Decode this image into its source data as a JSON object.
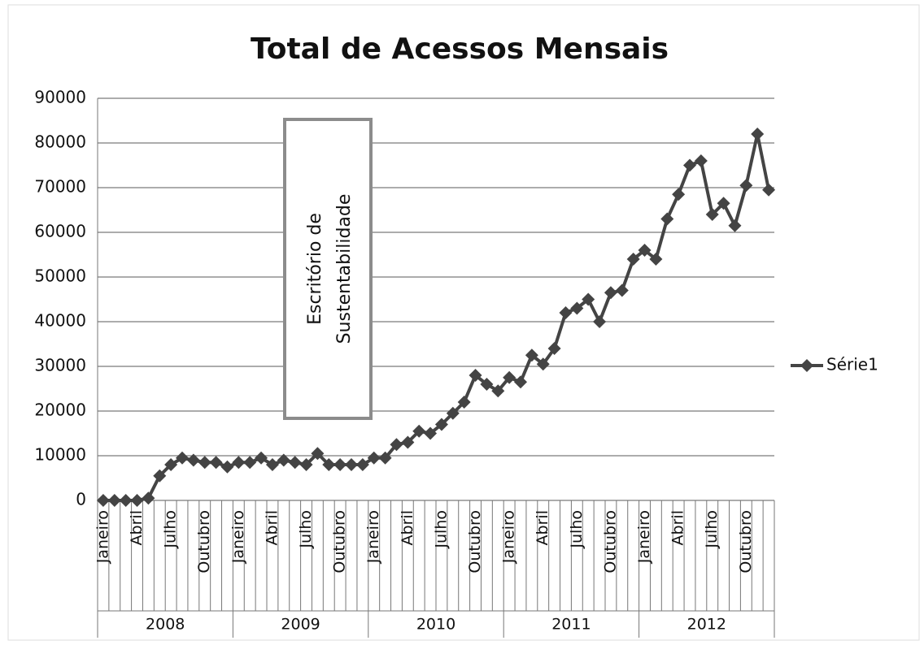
{
  "chart_data": {
    "type": "line",
    "title": "Total de Acessos Mensais",
    "categories": [
      "Janeiro",
      null,
      null,
      "Abril",
      null,
      null,
      "Julho",
      null,
      null,
      "Outubro",
      null,
      null,
      "Janeiro",
      null,
      null,
      "Abril",
      null,
      null,
      "Julho",
      null,
      null,
      "Outubro",
      null,
      null,
      "Janeiro",
      null,
      null,
      "Abril",
      null,
      null,
      "Julho",
      null,
      null,
      "Outubro",
      null,
      null,
      "Janeiro",
      null,
      null,
      "Abril",
      null,
      null,
      "Julho",
      null,
      null,
      "Outubro",
      null,
      null,
      "Janeiro",
      null,
      null,
      "Abril",
      null,
      null,
      "Julho",
      null,
      null,
      "Outubro",
      null,
      null
    ],
    "years": [
      "2008",
      "2009",
      "2010",
      "2011",
      "2012"
    ],
    "series": [
      {
        "name": "Série1",
        "color": "#444444",
        "values": [
          0,
          0,
          0,
          0,
          500,
          5500,
          8000,
          9500,
          9000,
          8500,
          8500,
          7500,
          8500,
          8500,
          9500,
          8000,
          9000,
          8500,
          8000,
          10500,
          8000,
          8000,
          8000,
          8000,
          9500,
          9500,
          12500,
          13000,
          15500,
          15000,
          17000,
          19500,
          22000,
          28000,
          26000,
          24500,
          27500,
          26500,
          32500,
          30500,
          34000,
          42000,
          43000,
          45000,
          40000,
          46500,
          47000,
          54000,
          56000,
          54000,
          63000,
          68500,
          75000,
          76000,
          64000,
          66500,
          61500,
          70500,
          82000,
          69500
        ]
      }
    ],
    "ylim": [
      0,
      90000
    ],
    "yticks": [
      0,
      10000,
      20000,
      30000,
      40000,
      50000,
      60000,
      70000,
      80000,
      90000
    ],
    "grid": true,
    "legend": "right",
    "annotation": [
      "Escritório de",
      "Sustentabilidade"
    ]
  }
}
